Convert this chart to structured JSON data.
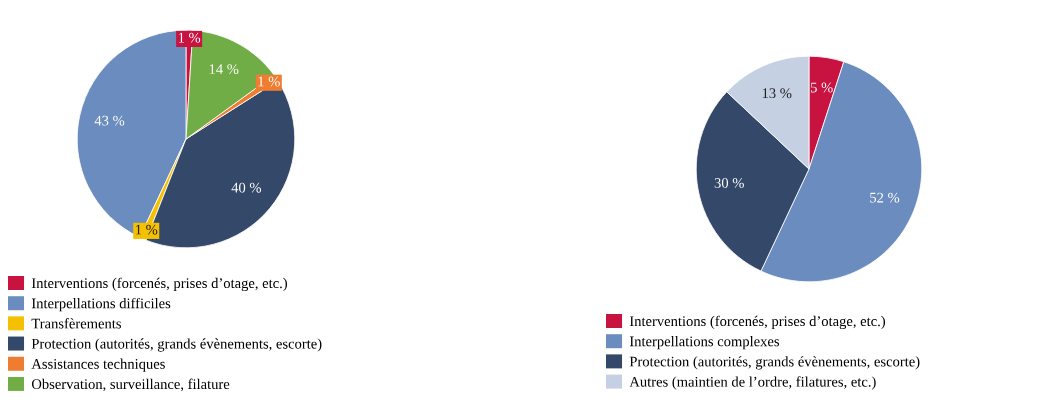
{
  "chart_data": [
    {
      "type": "pie",
      "categories": [
        "Interventions (forcenés, prises d’otage, etc.)",
        "Interpellations difficiles",
        "Transfèrements",
        "Protection (autorités, grands évènements, escorte)",
        "Assistances techniques",
        "Observation, surveillance, filature"
      ],
      "values": [
        1,
        43,
        1,
        40,
        1,
        14
      ],
      "colors": [
        "#c8123f",
        "#6b8cbe",
        "#f5c000",
        "#34486a",
        "#ee7d31",
        "#70ad47"
      ],
      "value_labels": [
        "1 %",
        "43 %",
        "1 %",
        "40 %",
        "1 %",
        "14 %"
      ],
      "legend": "bottom"
    },
    {
      "type": "pie",
      "categories": [
        "Interventions (forcenés, prises d’otage, etc.)",
        "Interpellations complexes",
        "Protection (autorités, grands évènements, escorte)",
        "Autres (maintien de l’ordre, filatures, etc.)"
      ],
      "values": [
        5,
        52,
        30,
        13
      ],
      "colors": [
        "#c8123f",
        "#6b8cbe",
        "#34486a",
        "#c5d0e3"
      ],
      "value_labels": [
        "5 %",
        "52 %",
        "30 %",
        "13 %"
      ],
      "legend": "bottom"
    }
  ]
}
